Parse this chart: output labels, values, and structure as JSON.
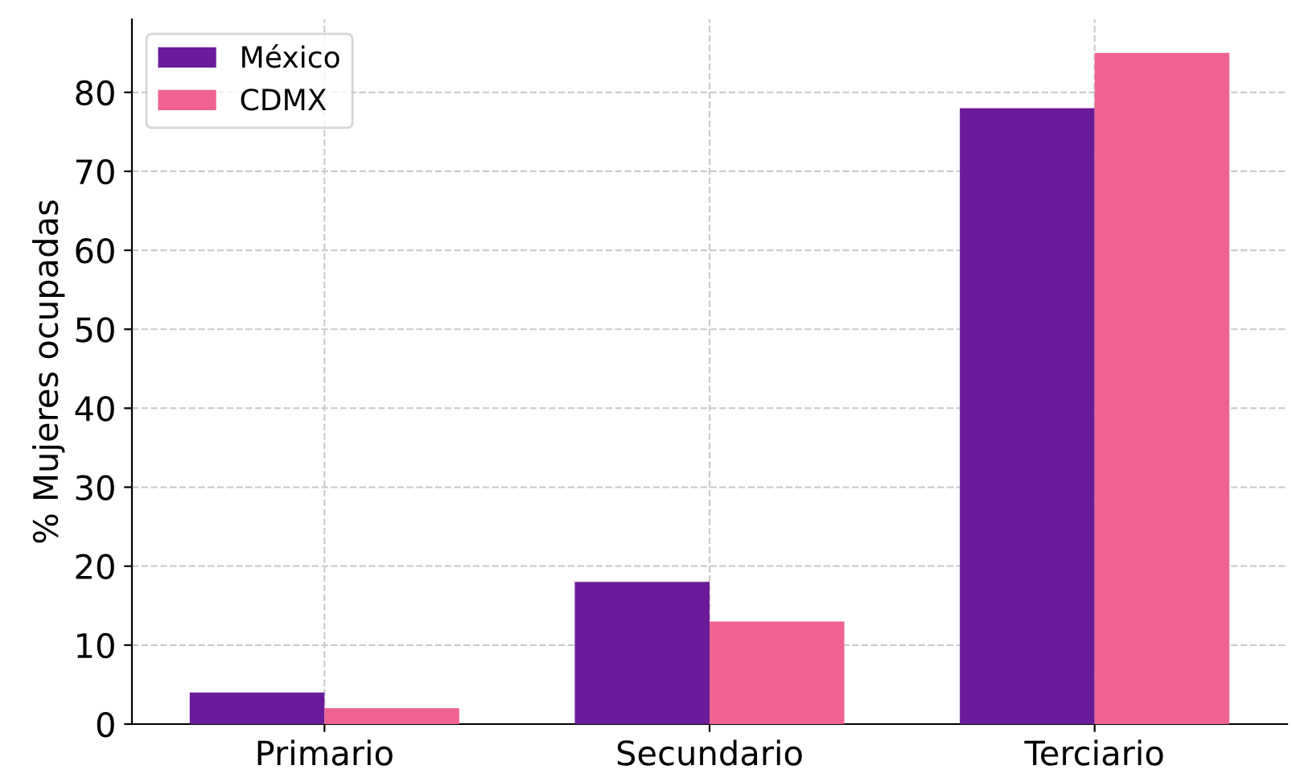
{
  "chart_data": {
    "type": "bar",
    "ylabel": "% Mujeres ocupadas",
    "categories": [
      "Primario",
      "Secundario",
      "Terciario"
    ],
    "series": [
      {
        "name": "México",
        "color": "#6a1b9a",
        "values": [
          4,
          18,
          78
        ]
      },
      {
        "name": "CDMX",
        "color": "#f06292",
        "values": [
          2,
          13,
          85
        ]
      }
    ],
    "ylim": [
      0,
      89.25
    ],
    "yticks": [
      0,
      10,
      20,
      30,
      40,
      50,
      60,
      70,
      80
    ],
    "grid": true,
    "legend": "top left"
  }
}
